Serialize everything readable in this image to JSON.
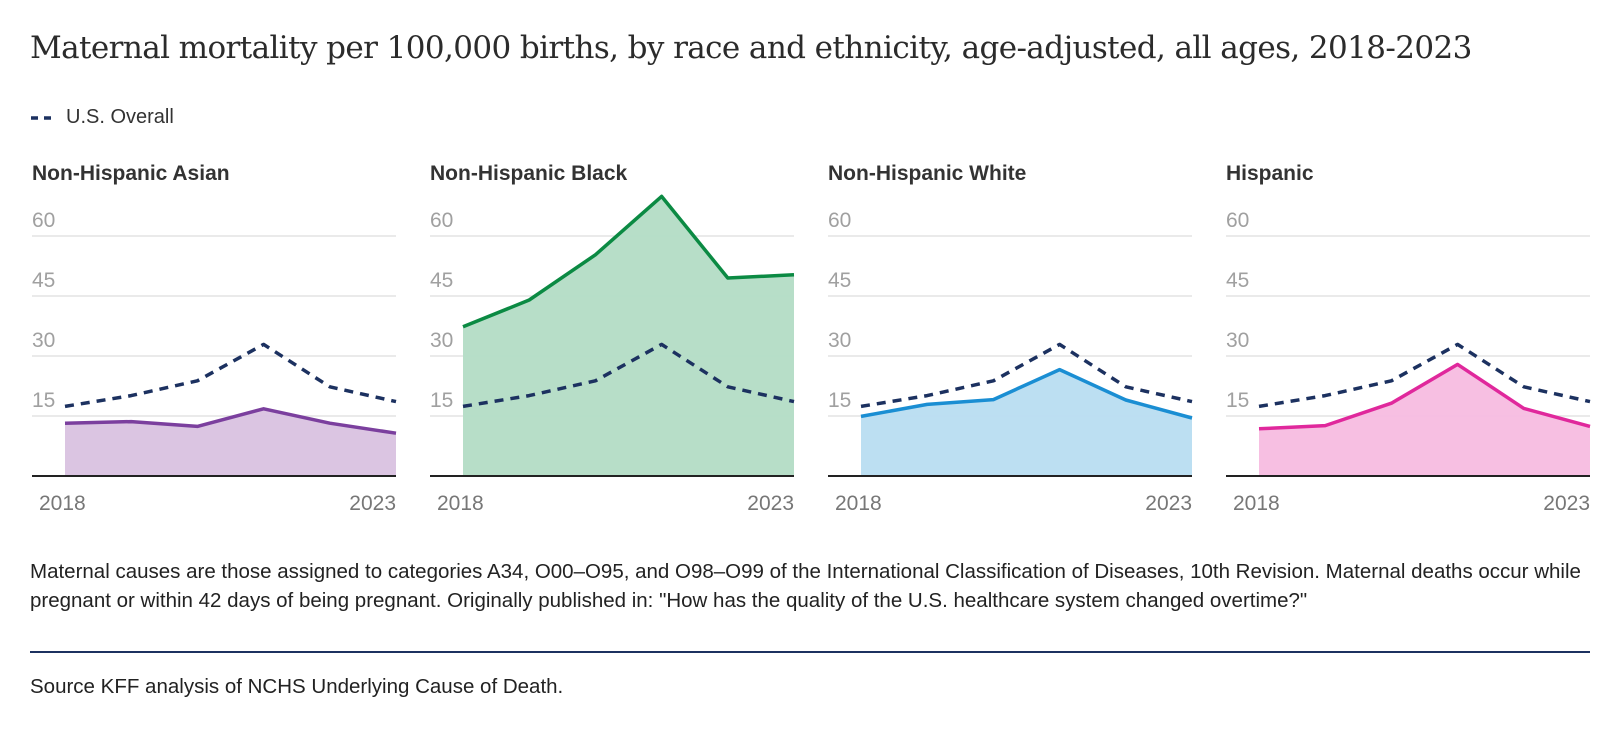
{
  "title": "Maternal mortality per 100,000 births, by race and ethnicity, age-adjusted, all ages, 2018-2023",
  "legend": {
    "overall_label": "U.S. Overall",
    "overall_color": "#1c3160"
  },
  "chart_data": {
    "type": "area",
    "x": [
      2018,
      2019,
      2020,
      2021,
      2022,
      2023
    ],
    "x_tick_labels": [
      "2018",
      "2023"
    ],
    "y_ticks": [
      15,
      30,
      45,
      60
    ],
    "ylim": [
      0,
      70
    ],
    "grid": true,
    "legend_position": "top-left",
    "overall": {
      "name": "U.S. Overall",
      "values": [
        17.4,
        20.1,
        23.8,
        32.9,
        22.3,
        18.6
      ]
    },
    "series": [
      {
        "name": "Non-Hispanic Asian",
        "color": "#7b3f9e",
        "fill": "#d9c2e0",
        "values": [
          13.2,
          13.6,
          12.4,
          16.8,
          13.2,
          10.7
        ]
      },
      {
        "name": "Non-Hispanic Black",
        "color": "#0b8a43",
        "fill": "#b3dcc5",
        "values": [
          37.3,
          44.0,
          55.3,
          69.9,
          49.5,
          50.3
        ]
      },
      {
        "name": "Non-Hispanic White",
        "color": "#1a8ed3",
        "fill": "#b8ddf1",
        "values": [
          14.9,
          17.9,
          19.1,
          26.6,
          19.0,
          14.5
        ]
      },
      {
        "name": "Hispanic",
        "color": "#e0289c",
        "fill": "#f7bce0",
        "values": [
          11.8,
          12.6,
          18.2,
          27.9,
          16.9,
          12.4
        ]
      }
    ]
  },
  "note": "Maternal causes are those assigned to categories A34, O00–O95, and O98–O99 of the International Classification of Diseases, 10th Revision. Maternal deaths occur while pregnant or within 42 days of being pregnant. Originally published in: \"How has the quality of the U.S. healthcare system changed overtime?\"",
  "source": "Source KFF analysis of NCHS Underlying Cause of Death."
}
